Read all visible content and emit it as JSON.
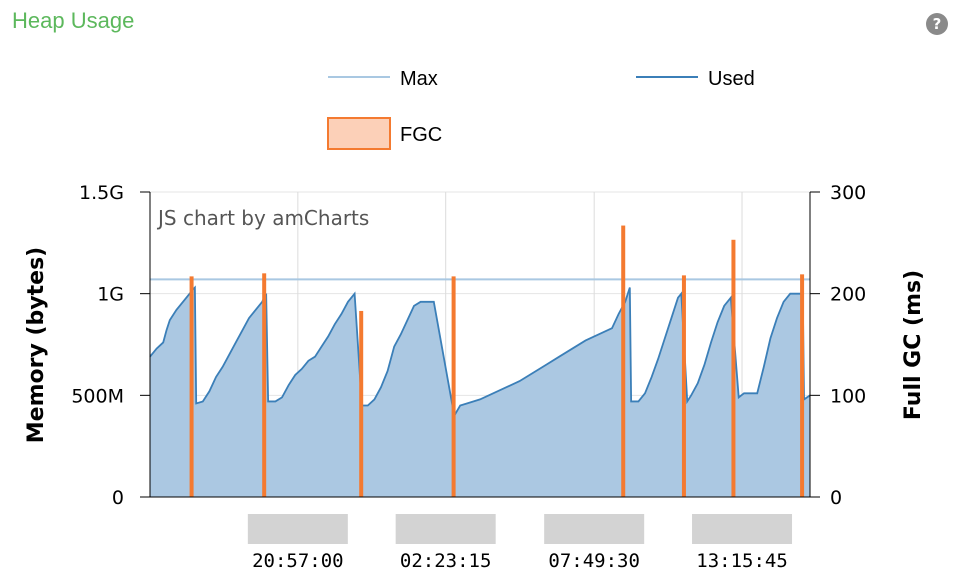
{
  "panel": {
    "title": "Heap Usage",
    "help_icon": "question-circle-icon",
    "help_symbol": "?"
  },
  "chart_data": {
    "type": "area",
    "credit": "JS chart by amCharts",
    "legend": {
      "placement": "top-center",
      "items": [
        {
          "name": "Max",
          "color": "#a9c8e2",
          "kind": "line"
        },
        {
          "name": "Used",
          "color": "#3b7fb8",
          "kind": "line"
        },
        {
          "name": "FGC",
          "color": "#f47a30",
          "fill": "#fcd0b8",
          "kind": "box"
        }
      ]
    },
    "y_left": {
      "label": "Memory (bytes)",
      "min": 0,
      "max": 1500,
      "ticks": [
        {
          "value": 0,
          "label": "0"
        },
        {
          "value": 500,
          "label": "500M"
        },
        {
          "value": 1000,
          "label": "1G"
        },
        {
          "value": 1500,
          "label": "1.5G"
        }
      ]
    },
    "y_right": {
      "label": "Full GC (ms)",
      "min": 0,
      "max": 300,
      "ticks": [
        {
          "value": 0,
          "label": "0"
        },
        {
          "value": 100,
          "label": "100"
        },
        {
          "value": 200,
          "label": "200"
        },
        {
          "value": 300,
          "label": "300"
        }
      ]
    },
    "x_axis": {
      "min": 0,
      "max": 100,
      "ticks": [
        {
          "value": 22.4,
          "label": "20:57:00"
        },
        {
          "value": 44.8,
          "label": "02:23:15"
        },
        {
          "value": 67.3,
          "label": "07:49:30"
        },
        {
          "value": 89.7,
          "label": "13:15:45"
        }
      ]
    },
    "grid": true,
    "series": [
      {
        "name": "Max",
        "points": [
          [
            0,
            1070
          ],
          [
            100,
            1070
          ]
        ]
      },
      {
        "name": "Used",
        "points": [
          [
            0,
            690
          ],
          [
            1,
            730
          ],
          [
            2,
            760
          ],
          [
            2.5,
            820
          ],
          [
            3,
            870
          ],
          [
            4,
            920
          ],
          [
            5,
            960
          ],
          [
            6,
            1000
          ],
          [
            6.5,
            1020
          ],
          [
            6.8,
            1030
          ],
          [
            7,
            460
          ],
          [
            8,
            470
          ],
          [
            9,
            520
          ],
          [
            10,
            590
          ],
          [
            11,
            640
          ],
          [
            12,
            700
          ],
          [
            13,
            760
          ],
          [
            14,
            820
          ],
          [
            15,
            880
          ],
          [
            16,
            920
          ],
          [
            17,
            960
          ],
          [
            17.6,
            1000
          ],
          [
            17.9,
            470
          ],
          [
            19,
            470
          ],
          [
            20,
            490
          ],
          [
            21,
            550
          ],
          [
            22,
            600
          ],
          [
            23,
            630
          ],
          [
            24,
            670
          ],
          [
            25,
            690
          ],
          [
            26,
            740
          ],
          [
            27,
            790
          ],
          [
            28,
            850
          ],
          [
            29,
            900
          ],
          [
            30,
            960
          ],
          [
            31,
            1000
          ],
          [
            32.1,
            450
          ],
          [
            33,
            450
          ],
          [
            34,
            480
          ],
          [
            35,
            540
          ],
          [
            36,
            620
          ],
          [
            37,
            740
          ],
          [
            38,
            800
          ],
          [
            39,
            870
          ],
          [
            40,
            940
          ],
          [
            41,
            960
          ],
          [
            42,
            960
          ],
          [
            43,
            960
          ],
          [
            46.1,
            400
          ],
          [
            47,
            450
          ],
          [
            48,
            460
          ],
          [
            50,
            480
          ],
          [
            52,
            510
          ],
          [
            54,
            540
          ],
          [
            56,
            570
          ],
          [
            58,
            610
          ],
          [
            60,
            650
          ],
          [
            62,
            690
          ],
          [
            64,
            730
          ],
          [
            66,
            770
          ],
          [
            68,
            800
          ],
          [
            70,
            830
          ],
          [
            71,
            900
          ],
          [
            72,
            960
          ],
          [
            72.7,
            1030
          ],
          [
            72.9,
            470
          ],
          [
            74,
            470
          ],
          [
            75,
            510
          ],
          [
            76,
            590
          ],
          [
            77,
            680
          ],
          [
            78,
            780
          ],
          [
            79,
            880
          ],
          [
            80,
            980
          ],
          [
            80.5,
            1000
          ],
          [
            81.4,
            470
          ],
          [
            82,
            500
          ],
          [
            83,
            560
          ],
          [
            84,
            650
          ],
          [
            85,
            760
          ],
          [
            86,
            860
          ],
          [
            87,
            940
          ],
          [
            88,
            980
          ],
          [
            89.2,
            490
          ],
          [
            90,
            510
          ],
          [
            92,
            510
          ],
          [
            93,
            640
          ],
          [
            94,
            780
          ],
          [
            95,
            880
          ],
          [
            96,
            960
          ],
          [
            97,
            1000
          ],
          [
            98.9,
            1000
          ],
          [
            99.1,
            480
          ],
          [
            100,
            500
          ]
        ]
      },
      {
        "name": "FGC",
        "bars": [
          {
            "x": 6.3,
            "value": 217
          },
          {
            "x": 17.3,
            "value": 220
          },
          {
            "x": 32.0,
            "value": 183
          },
          {
            "x": 46.0,
            "value": 217
          },
          {
            "x": 71.7,
            "value": 267
          },
          {
            "x": 80.9,
            "value": 218
          },
          {
            "x": 88.4,
            "value": 253
          },
          {
            "x": 98.8,
            "value": 219
          }
        ]
      }
    ]
  }
}
